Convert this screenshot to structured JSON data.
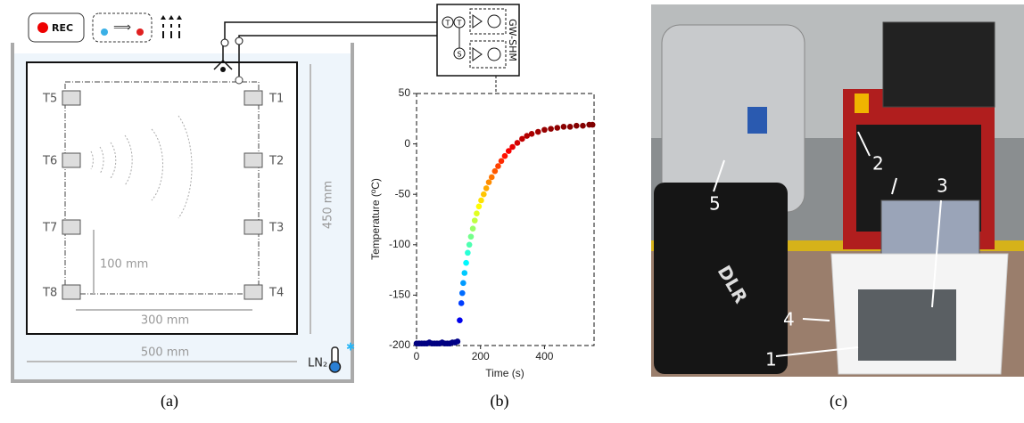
{
  "panel_a": {
    "rec": "REC",
    "sensors_left": [
      "T5",
      "T6",
      "T7",
      "T8"
    ],
    "sensors_right": [
      "T1",
      "T2",
      "T3",
      "T4"
    ],
    "height_dim": "450 mm",
    "spacing_dim": "100 mm",
    "width_dim": "300 mm",
    "tank_dim": "500 mm",
    "coolant": "LN₂",
    "caption": "(a)"
  },
  "panel_b": {
    "device": "GW-SHM",
    "ports": [
      "T",
      "T",
      "S"
    ],
    "caption": "(b)"
  },
  "chart_data": {
    "type": "scatter",
    "xlabel": "Time (s)",
    "ylabel": "Temperature (ºC)",
    "colormap": "jet",
    "x": [
      0,
      8,
      16,
      24,
      32,
      40,
      48,
      56,
      64,
      72,
      80,
      88,
      96,
      104,
      112,
      120,
      128,
      135,
      140,
      143,
      146,
      150,
      155,
      160,
      165,
      170,
      176,
      182,
      188,
      195,
      202,
      210,
      218,
      226,
      235,
      245,
      255,
      265,
      276,
      288,
      300,
      315,
      330,
      345,
      360,
      380,
      400,
      420,
      440,
      460,
      480,
      500,
      520,
      540,
      550
    ],
    "values": [
      -198,
      -198,
      -198,
      -198,
      -198,
      -197,
      -198,
      -198,
      -198,
      -198,
      -197,
      -198,
      -198,
      -198,
      -197,
      -197,
      -196,
      -175,
      -158,
      -148,
      -138,
      -128,
      -118,
      -108,
      -100,
      -92,
      -84,
      -76,
      -69,
      -62,
      -56,
      -50,
      -44,
      -38,
      -33,
      -27,
      -22,
      -17,
      -12,
      -7,
      -3,
      1,
      5,
      8,
      10,
      12,
      14,
      15,
      16,
      17,
      17,
      18,
      18,
      19,
      19
    ],
    "xlim": [
      0,
      555
    ],
    "ylim": [
      -200,
      50
    ],
    "xticks": [
      0,
      200,
      400
    ],
    "yticks": [
      -200,
      -150,
      -100,
      -50,
      0,
      50
    ]
  },
  "panel_c": {
    "labels": [
      "1",
      "2",
      "3",
      "4",
      "5"
    ],
    "case_logo": "DLR",
    "caption": "(c)"
  }
}
